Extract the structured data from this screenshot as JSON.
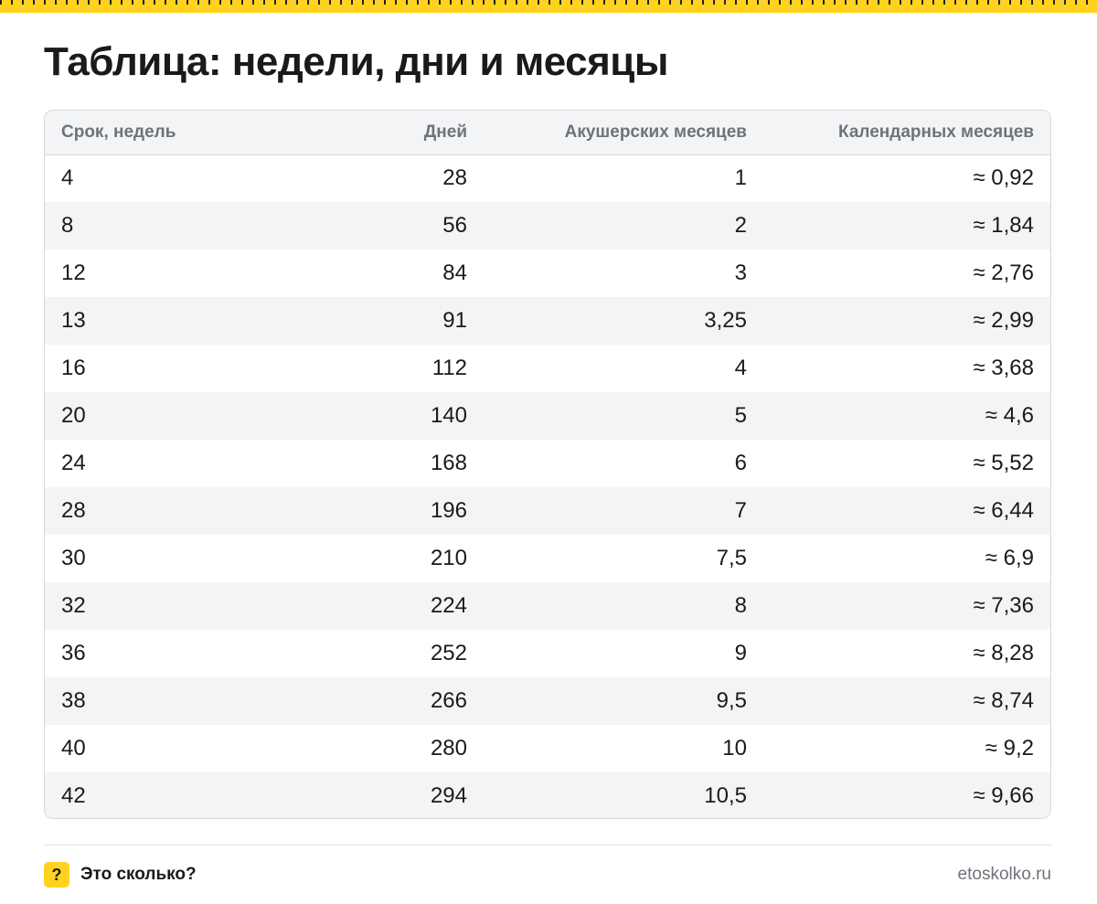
{
  "title": "Таблица: недели, дни и месяцы",
  "table": {
    "headers": [
      "Срок, недель",
      "Дней",
      "Акушерских месяцев",
      "Календарных месяцев"
    ],
    "rows": [
      [
        "4",
        "28",
        "1",
        "≈ 0,92"
      ],
      [
        "8",
        "56",
        "2",
        "≈ 1,84"
      ],
      [
        "12",
        "84",
        "3",
        "≈ 2,76"
      ],
      [
        "13",
        "91",
        "3,25",
        "≈ 2,99"
      ],
      [
        "16",
        "112",
        "4",
        "≈ 3,68"
      ],
      [
        "20",
        "140",
        "5",
        "≈ 4,6"
      ],
      [
        "24",
        "168",
        "6",
        "≈ 5,52"
      ],
      [
        "28",
        "196",
        "7",
        "≈ 6,44"
      ],
      [
        "30",
        "210",
        "7,5",
        "≈ 6,9"
      ],
      [
        "32",
        "224",
        "8",
        "≈ 7,36"
      ],
      [
        "36",
        "252",
        "9",
        "≈ 8,28"
      ],
      [
        "38",
        "266",
        "9,5",
        "≈ 8,74"
      ],
      [
        "40",
        "280",
        "10",
        "≈ 9,2"
      ],
      [
        "42",
        "294",
        "10,5",
        "≈ 9,66"
      ]
    ]
  },
  "footer": {
    "brand_icon_glyph": "?",
    "brand_name": "Это сколько?",
    "site": "etoskolko.ru"
  },
  "colors": {
    "accent": "#ffd21f",
    "text": "#1a1a1a",
    "muted": "#6e727a",
    "stripe": "#f3f4f6",
    "border": "#d7d9de"
  },
  "icons": {
    "brand": "question-mark-icon",
    "ruler": "ruler-tick-strip"
  }
}
